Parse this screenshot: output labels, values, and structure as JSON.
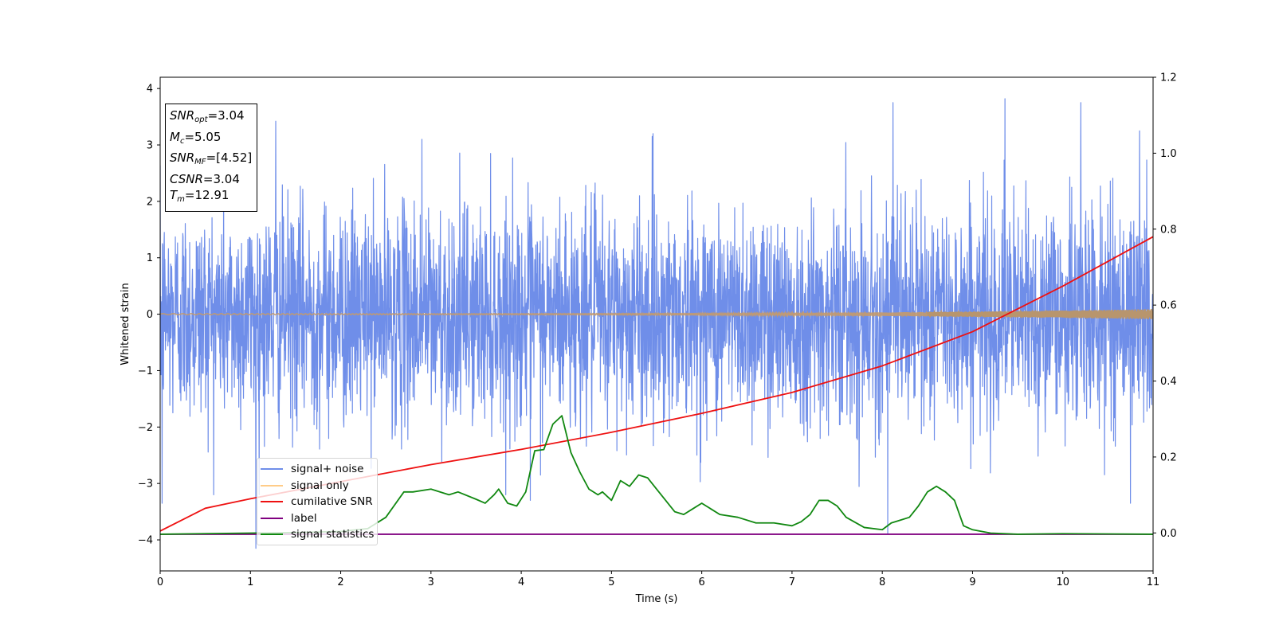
{
  "chart_data": {
    "type": "line",
    "xlabel": "Time (s)",
    "ylabel": "Whitened strain",
    "xlim": [
      0,
      11
    ],
    "ylim_left": [
      -4.55,
      4.2
    ],
    "ylim_right": [
      -0.1,
      1.2
    ],
    "x_ticks": [
      "0",
      "1",
      "2",
      "3",
      "4",
      "5",
      "6",
      "7",
      "8",
      "9",
      "10",
      "11"
    ],
    "y_ticks_left": [
      "4",
      "3",
      "2",
      "1",
      "0",
      "−1",
      "−2",
      "−3",
      "−4"
    ],
    "y_ticks_right": [
      "1.2",
      "1.0",
      "0.8",
      "0.6",
      "0.4",
      "0.2",
      "0.0"
    ],
    "legend": {
      "position": "lower-left",
      "entries": [
        "signal+ noise",
        "signal only",
        "cumilative SNR",
        "label",
        "signal statistics"
      ]
    },
    "annotation": {
      "snr_opt_sym": "SNR",
      "snr_opt_sub": "opt",
      "snr_opt_val": "=3.04",
      "mc_sym": "M",
      "mc_sub": "c",
      "mc_val": "=5.05",
      "snr_mf_sym": "SNR",
      "snr_mf_sub": "MF",
      "snr_mf_val": "=[4.52]",
      "csnr_sym": "CSNR",
      "csnr_val": "=3.04",
      "tm_sym": "T",
      "tm_sub": "m",
      "tm_val": "=12.91"
    },
    "series": [
      {
        "name": "signal+ noise",
        "axis": "left",
        "color": "#6f8ee9",
        "style": "dense noise",
        "std": 0.95,
        "t_range": [
          0,
          11
        ],
        "notable_spikes": [
          [
            0.02,
            -3.35
          ],
          [
            1.06,
            -4.15
          ],
          [
            1.28,
            3.42
          ],
          [
            2.9,
            3.1
          ],
          [
            4.1,
            -3.3
          ],
          [
            5.45,
            3.15
          ],
          [
            8.12,
            3.75
          ],
          [
            8.06,
            -3.9
          ],
          [
            9.36,
            3.82
          ],
          [
            10.2,
            3.75
          ],
          [
            10.75,
            -3.35
          ],
          [
            10.85,
            3.25
          ]
        ]
      },
      {
        "name": "signal only",
        "axis": "left",
        "color": "#ffcc88",
        "style": "chirp",
        "amplitude_start": 0.01,
        "amplitude_end": 0.09
      },
      {
        "name": "cumilative SNR",
        "axis": "right",
        "color": "#ee1111",
        "x": [
          0,
          0.5,
          1,
          2,
          3,
          4,
          5,
          6,
          7,
          8,
          9,
          9.5,
          10,
          10.5,
          11
        ],
        "y": [
          0.005,
          0.065,
          0.09,
          0.135,
          0.18,
          0.22,
          0.265,
          0.315,
          0.37,
          0.44,
          0.53,
          0.59,
          0.65,
          0.715,
          0.78
        ]
      },
      {
        "name": "label",
        "axis": "left",
        "color": "#800080",
        "x": [
          0,
          11
        ],
        "y": [
          -3.9,
          -3.9
        ]
      },
      {
        "name": "signal statistics",
        "axis": "left",
        "color": "#118811",
        "x": [
          0,
          1,
          1.5,
          2,
          2.3,
          2.5,
          2.7,
          2.8,
          3,
          3.2,
          3.3,
          3.5,
          3.6,
          3.7,
          3.75,
          3.85,
          3.95,
          4.05,
          4.15,
          4.25,
          4.35,
          4.45,
          4.55,
          4.65,
          4.75,
          4.85,
          4.9,
          5,
          5.1,
          5.2,
          5.3,
          5.4,
          5.5,
          5.6,
          5.7,
          5.8,
          5.9,
          6,
          6.1,
          6.2,
          6.4,
          6.6,
          6.8,
          7,
          7.1,
          7.2,
          7.3,
          7.4,
          7.5,
          7.6,
          7.8,
          8,
          8.1,
          8.2,
          8.3,
          8.4,
          8.5,
          8.6,
          8.7,
          8.8,
          8.9,
          9,
          9.2,
          9.5,
          10,
          11
        ],
        "y": [
          -3.9,
          -3.88,
          -3.87,
          -3.85,
          -3.8,
          -3.6,
          -3.15,
          -3.15,
          -3.1,
          -3.2,
          -3.15,
          -3.28,
          -3.35,
          -3.2,
          -3.1,
          -3.35,
          -3.4,
          -3.15,
          -2.42,
          -2.4,
          -1.95,
          -1.8,
          -2.45,
          -2.8,
          -3.1,
          -3.2,
          -3.15,
          -3.3,
          -2.95,
          -3.05,
          -2.85,
          -2.9,
          -3.1,
          -3.3,
          -3.5,
          -3.55,
          -3.45,
          -3.35,
          -3.45,
          -3.55,
          -3.6,
          -3.7,
          -3.7,
          -3.75,
          -3.68,
          -3.55,
          -3.3,
          -3.3,
          -3.4,
          -3.6,
          -3.78,
          -3.82,
          -3.7,
          -3.65,
          -3.6,
          -3.4,
          -3.15,
          -3.05,
          -3.15,
          -3.3,
          -3.75,
          -3.82,
          -3.88,
          -3.9,
          -3.89,
          -3.9
        ]
      }
    ]
  }
}
